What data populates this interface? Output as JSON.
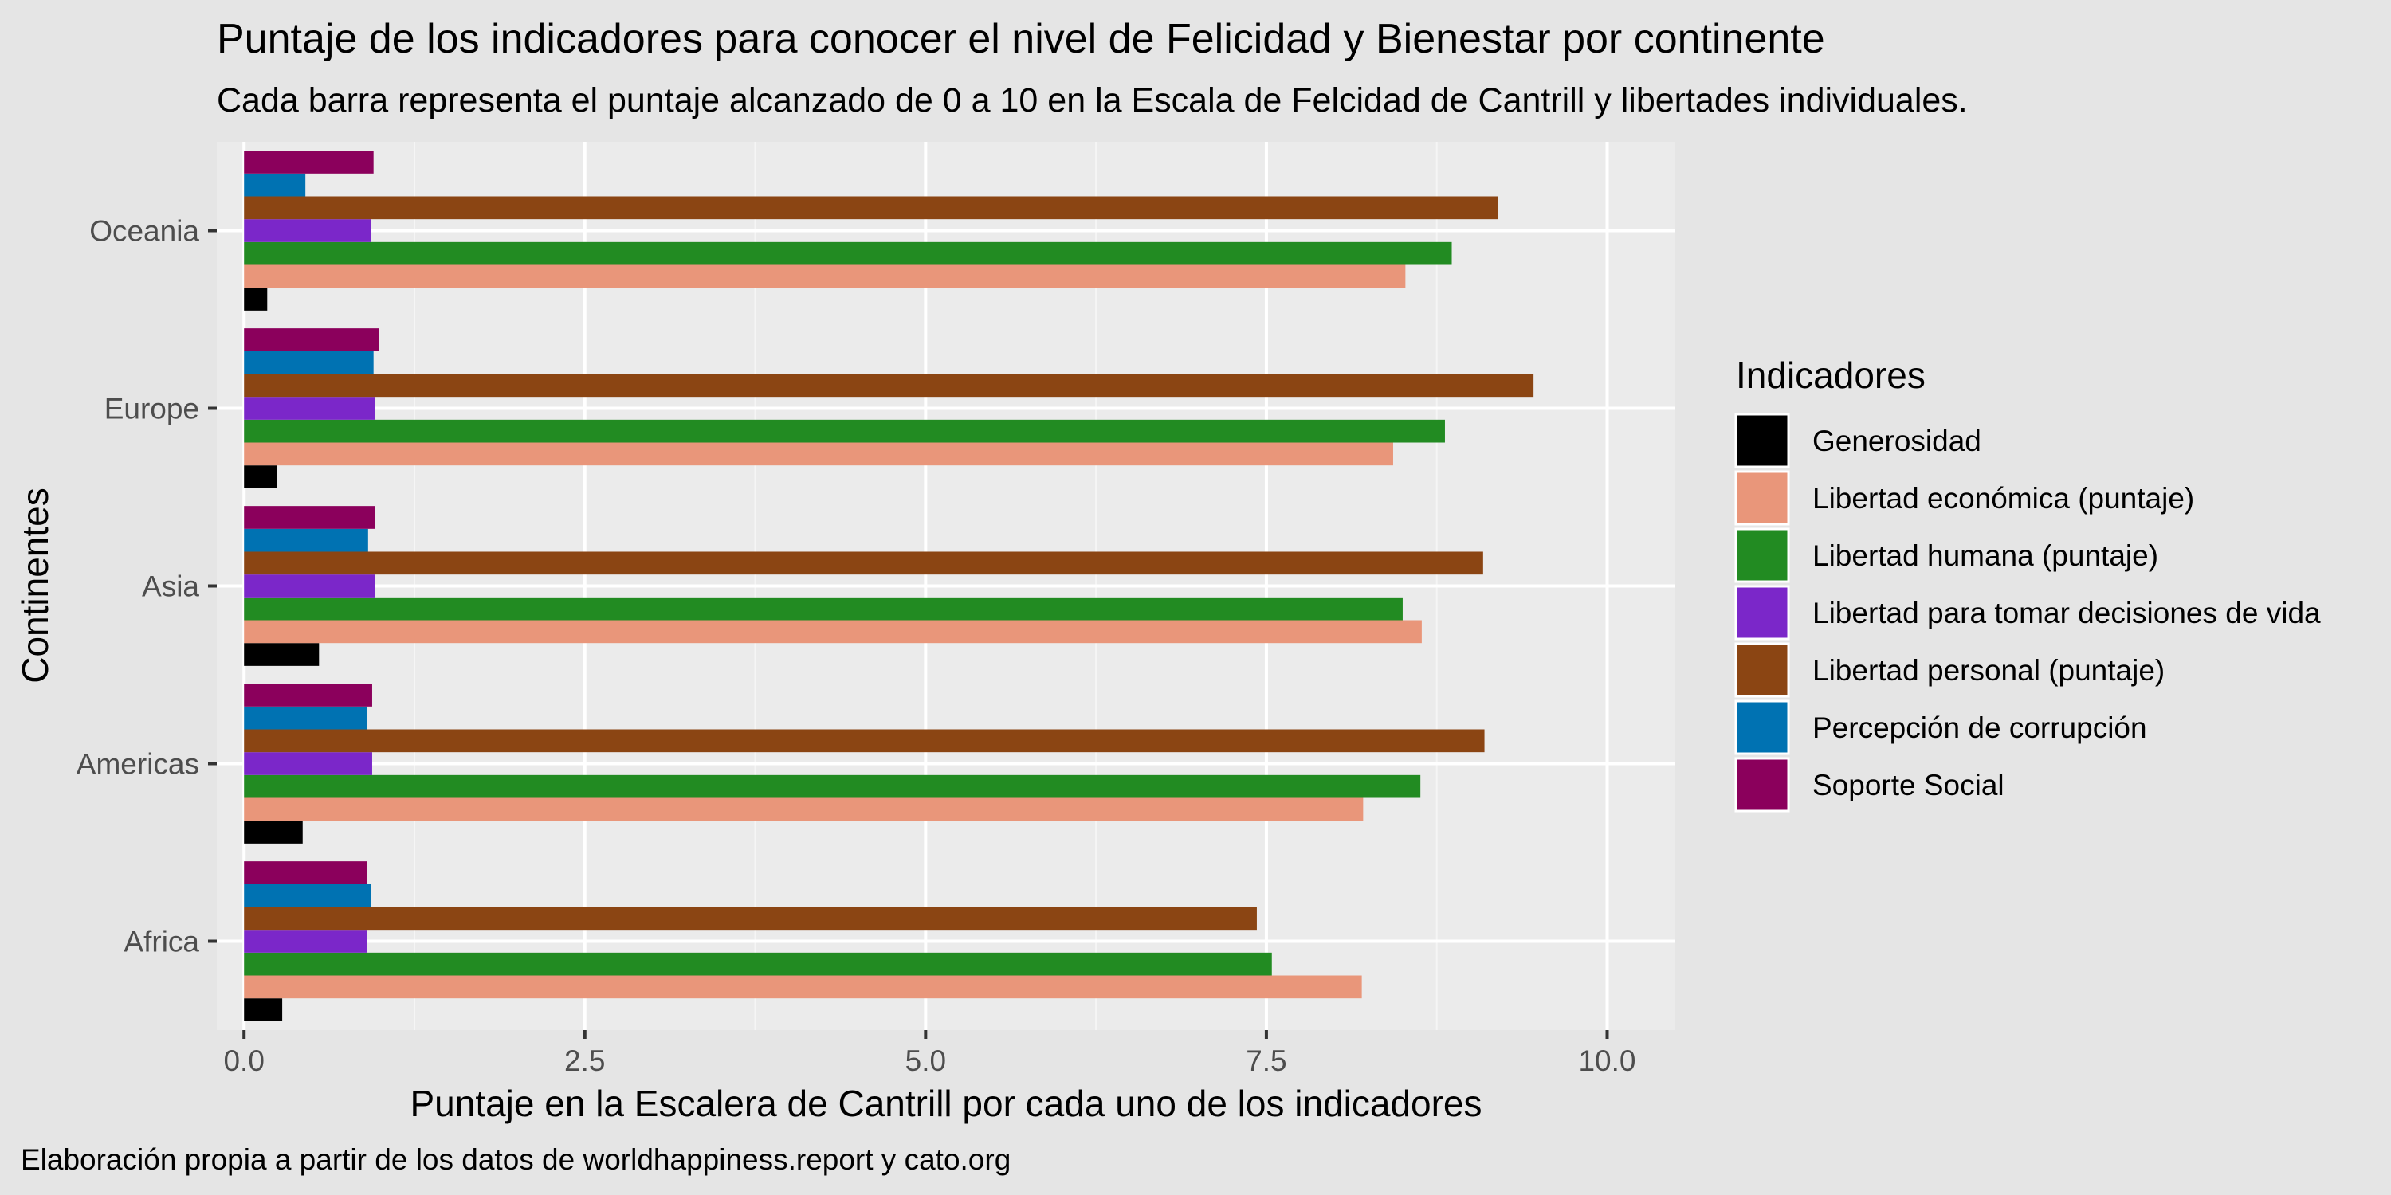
{
  "chart_data": {
    "type": "bar",
    "orientation": "horizontal",
    "title": "Puntaje de los indicadores para conocer el nivel de Felicidad y Bienestar por continente",
    "subtitle": "Cada barra representa el puntaje alcanzado de 0 a 10 en la Escala de Felcidad de Cantrill y libertades individuales.",
    "xlabel": "Puntaje en la Escalera de Cantrill por cada uno de los indicadores",
    "ylabel": "Continentes",
    "caption": "Elaboración propia a partir de los datos de worldhappiness.report y cato.org",
    "legend_title": "Indicadores",
    "legend_position": "right",
    "grid": true,
    "xlim": [
      -0.2,
      10.5
    ],
    "x_ticks": [
      0,
      2.5,
      5,
      7.5,
      10
    ],
    "x_tick_labels": [
      "0.0",
      "2.5",
      "5.0",
      "7.5",
      "10.0"
    ],
    "categories": [
      "Africa",
      "Americas",
      "Asia",
      "Europe",
      "Oceania"
    ],
    "series": [
      {
        "name": "Generosidad",
        "color": "#000000",
        "values": [
          0.28,
          0.43,
          0.55,
          0.24,
          0.17
        ]
      },
      {
        "name": "Libertad económica (puntaje)",
        "color": "#E9967A",
        "values": [
          8.2,
          8.21,
          8.64,
          8.43,
          8.52
        ]
      },
      {
        "name": "Libertad humana (puntaje)",
        "color": "#228B22",
        "values": [
          7.54,
          8.63,
          8.5,
          8.81,
          8.86
        ]
      },
      {
        "name": "Libertad para tomar decisiones de vida",
        "color": "#7B27C9",
        "values": [
          0.9,
          0.94,
          0.96,
          0.96,
          0.93
        ]
      },
      {
        "name": "Libertad personal (puntaje)",
        "color": "#8B4513",
        "values": [
          7.43,
          9.1,
          9.09,
          9.46,
          9.2
        ]
      },
      {
        "name": "Percepción de corrupción",
        "color": "#0072B2",
        "values": [
          0.93,
          0.9,
          0.91,
          0.95,
          0.45
        ]
      },
      {
        "name": "Soporte Social",
        "color": "#8B005C",
        "values": [
          0.9,
          0.94,
          0.96,
          0.99,
          0.95
        ]
      }
    ]
  }
}
